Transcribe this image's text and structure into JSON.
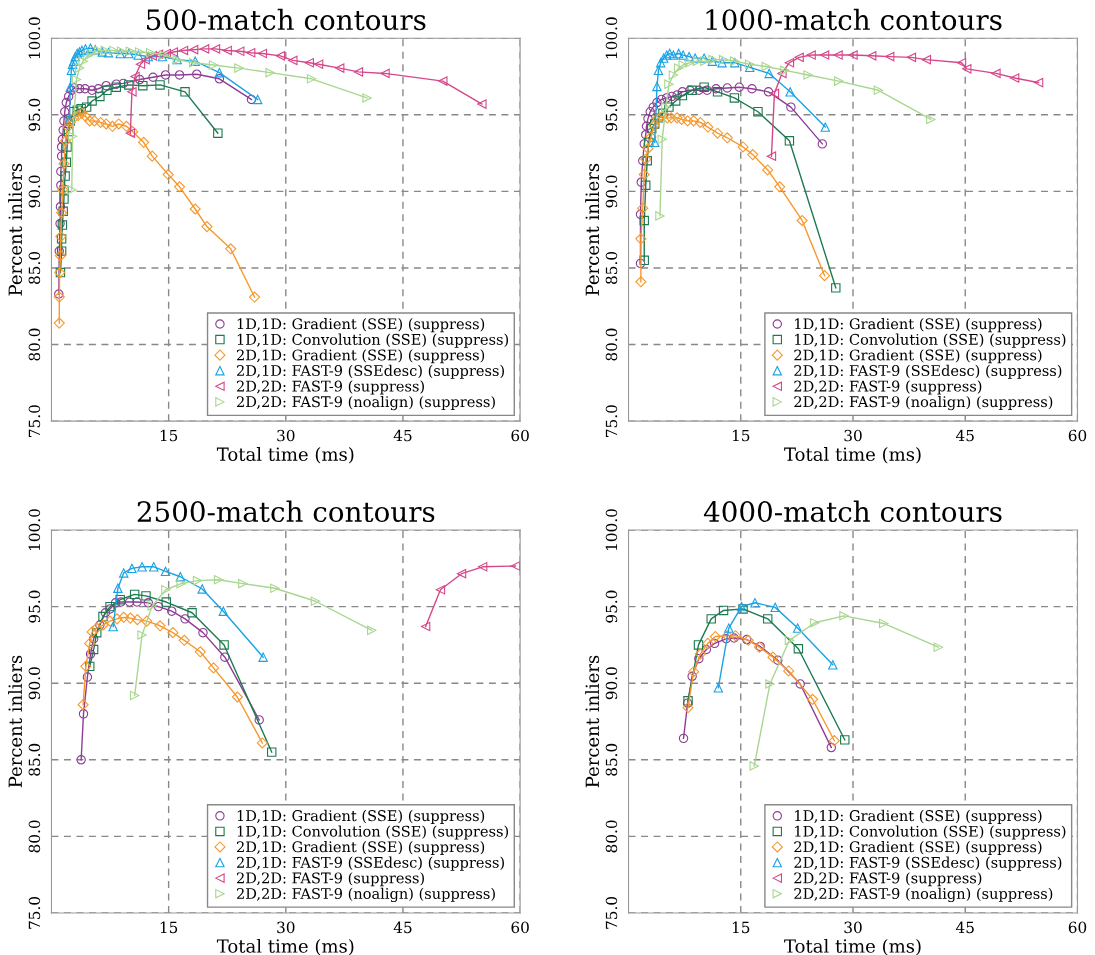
{
  "chart_data": [
    {
      "type": "line",
      "title": "500-match contours",
      "xlabel": "Total time (ms)",
      "ylabel": "Percent inliers",
      "xlim": [
        0,
        60
      ],
      "ylim": [
        75,
        100
      ],
      "xticks": [
        15,
        30,
        45,
        60
      ],
      "yticks": [
        {
          "value": 75,
          "label": "75.0"
        },
        {
          "value": 80,
          "label": "80.0"
        },
        {
          "value": 85,
          "label": "85.0"
        },
        {
          "value": 90,
          "label": "90.0"
        },
        {
          "value": 95,
          "label": "95.0"
        },
        {
          "value": 100,
          "label": "100.0"
        }
      ],
      "grid": true,
      "legend": "bottom right",
      "series": [
        {
          "name": "1D,1D: Gradient (SSE) (suppress)",
          "color": "#8e3d96",
          "marker": "circle",
          "x": [
            0.94,
            1.0,
            1.1,
            1.15,
            1.2,
            1.2,
            1.3,
            1.3,
            1.4,
            1.5,
            1.6,
            1.7,
            1.9,
            2.2,
            2.6,
            2.9,
            3.6,
            4.3,
            5.2,
            6.0,
            7.0,
            8.3,
            9.2,
            11.3,
            13.0,
            14.6,
            16.4,
            18.6,
            21.5,
            25.6
          ],
          "values": [
            83.3,
            86.1,
            87.9,
            89.0,
            90.4,
            91.3,
            92.3,
            92.9,
            93.4,
            94.0,
            94.6,
            95.2,
            95.8,
            96.2,
            96.6,
            96.75,
            96.7,
            96.7,
            96.6,
            96.7,
            96.9,
            97.0,
            97.05,
            97.3,
            97.45,
            97.6,
            97.6,
            97.65,
            97.35,
            96.0
          ]
        },
        {
          "name": "1D,1D: Convolution (SSE) (suppress)",
          "color": "#1b7a4f",
          "marker": "square",
          "x": [
            1.15,
            1.3,
            1.3,
            1.4,
            1.5,
            1.6,
            1.6,
            1.75,
            1.9,
            2.0,
            2.2,
            2.4,
            2.85,
            3.3,
            3.8,
            4.5,
            5.2,
            6.2,
            7.1,
            8.3,
            9.9,
            11.7,
            13.9,
            17.1,
            21.3
          ],
          "values": [
            84.7,
            86.1,
            86.9,
            87.8,
            88.7,
            89.5,
            90.1,
            91.0,
            91.9,
            92.9,
            93.9,
            94.6,
            95.2,
            95.3,
            95.4,
            95.5,
            95.9,
            96.2,
            96.6,
            96.8,
            96.95,
            96.9,
            96.95,
            96.5,
            93.8
          ]
        },
        {
          "name": "2D,1D: Gradient (SSE) (suppress)",
          "color": "#f7982c",
          "marker": "diamond",
          "x": [
            1.0,
            1.0,
            1.05,
            1.15,
            1.2,
            1.3,
            1.45,
            1.6,
            1.8,
            2.1,
            2.4,
            2.85,
            3.4,
            3.9,
            4.35,
            4.9,
            5.5,
            6.3,
            7.0,
            7.8,
            8.6,
            9.6,
            10.4,
            11.8,
            12.9,
            14.95,
            16.4,
            18.4,
            19.9,
            22.95,
            26.0
          ],
          "values": [
            81.4,
            83.1,
            84.7,
            85.8,
            87.05,
            88.6,
            90.1,
            91.8,
            93.3,
            94.2,
            94.5,
            94.8,
            94.95,
            95.1,
            94.9,
            94.6,
            94.6,
            94.5,
            94.4,
            94.25,
            94.4,
            94.25,
            93.9,
            93.2,
            92.3,
            91.1,
            90.3,
            88.85,
            87.7,
            86.25,
            83.1
          ]
        },
        {
          "name": "2D,1D: FAST-9 (SSEdesc) (suppress)",
          "color": "#1aa2e6",
          "marker": "triangle",
          "x": [
            2.3,
            2.4,
            2.55,
            2.7,
            2.85,
            3.05,
            3.3,
            3.6,
            3.9,
            4.35,
            5.0,
            5.6,
            6.5,
            7.3,
            8.8,
            9.9,
            11.1,
            12.4,
            14.2,
            16.1,
            18.4,
            21.5,
            26.4
          ],
          "values": [
            94.7,
            96.8,
            97.9,
            98.3,
            98.5,
            98.8,
            99.0,
            99.1,
            99.2,
            99.3,
            99.35,
            99.25,
            99.1,
            99.05,
            99.0,
            99.0,
            98.9,
            98.8,
            98.8,
            98.6,
            98.5,
            97.75,
            96.0
          ]
        },
        {
          "name": "2D,2D: FAST-9 (suppress)",
          "color": "#d6478a",
          "marker": "triangle-left",
          "x": [
            10.1,
            10.3,
            10.7,
            11.4,
            12.0,
            12.9,
            13.7,
            14.7,
            15.6,
            16.9,
            18.2,
            19.6,
            21.0,
            22.5,
            24.1,
            25.5,
            27.0,
            29.3,
            30.9,
            33.0,
            34.2,
            36.9,
            39.3,
            42.7,
            50.1,
            55.1
          ],
          "values": [
            93.8,
            96.5,
            97.5,
            98.3,
            98.6,
            98.85,
            98.95,
            99.0,
            99.1,
            99.2,
            99.25,
            99.3,
            99.3,
            99.2,
            99.15,
            99.05,
            99.0,
            98.85,
            98.55,
            98.4,
            98.3,
            98.05,
            97.8,
            97.7,
            97.2,
            95.7
          ]
        },
        {
          "name": "2D,2D: FAST-9 (noalign) (suppress)",
          "color": "#a8d68f",
          "marker": "triangle-right",
          "x": [
            2.6,
            2.7,
            3.2,
            3.6,
            4.05,
            4.6,
            5.2,
            6.05,
            6.9,
            8.0,
            9.0,
            10.1,
            11.3,
            12.7,
            14.4,
            16.1,
            18.2,
            20.75,
            24.0,
            28.0,
            33.3,
            40.4
          ],
          "values": [
            90.1,
            93.6,
            97.3,
            98.05,
            98.5,
            98.85,
            99.0,
            99.2,
            99.2,
            99.2,
            99.15,
            99.15,
            99.1,
            99.05,
            98.9,
            98.6,
            98.4,
            98.25,
            98.05,
            97.75,
            97.35,
            96.1
          ]
        }
      ]
    },
    {
      "type": "line",
      "title": "1000-match contours",
      "xlabel": "Total time (ms)",
      "ylabel": "Percent inliers",
      "xlim": [
        0,
        60
      ],
      "ylim": [
        75,
        100
      ],
      "xticks": [
        15,
        30,
        45,
        60
      ],
      "yticks": [
        {
          "value": 75,
          "label": "75.0"
        },
        {
          "value": 80,
          "label": "80.0"
        },
        {
          "value": 85,
          "label": "85.0"
        },
        {
          "value": 90,
          "label": "90.0"
        },
        {
          "value": 95,
          "label": "95.0"
        },
        {
          "value": 100,
          "label": "100.0"
        }
      ],
      "grid": true,
      "legend": "bottom right",
      "series": [
        {
          "name": "1D,1D: Gradient (SSE) (suppress)",
          "color": "#8e3d96",
          "marker": "circle",
          "x": [
            1.6,
            1.6,
            1.7,
            1.9,
            2.1,
            2.3,
            2.4,
            2.6,
            2.9,
            3.3,
            3.8,
            4.4,
            5.1,
            5.8,
            6.5,
            7.2,
            8.2,
            9.4,
            10.5,
            11.7,
            13.2,
            14.8,
            16.5,
            18.7,
            21.7,
            25.9
          ],
          "values": [
            85.3,
            88.5,
            90.6,
            92.0,
            93.1,
            93.7,
            94.25,
            94.75,
            95.2,
            95.5,
            95.8,
            96.0,
            96.1,
            96.2,
            96.3,
            96.5,
            96.6,
            96.6,
            96.6,
            96.7,
            96.75,
            96.8,
            96.7,
            96.5,
            95.5,
            93.1
          ]
        },
        {
          "name": "1D,1D: Convolution (SSE) (suppress)",
          "color": "#1b7a4f",
          "marker": "square",
          "x": [
            2.1,
            2.1,
            2.3,
            2.5,
            2.7,
            3.1,
            3.5,
            4.0,
            4.6,
            5.4,
            6.3,
            7.2,
            8.5,
            10.1,
            11.9,
            14.15,
            17.3,
            21.5,
            27.7
          ],
          "values": [
            85.5,
            88.1,
            90.4,
            92.0,
            93.2,
            94.1,
            94.4,
            94.8,
            95.1,
            95.5,
            95.9,
            96.25,
            96.6,
            96.8,
            96.5,
            96.1,
            95.2,
            93.3,
            83.7
          ]
        },
        {
          "name": "2D,1D: Gradient (SSE) (suppress)",
          "color": "#f7982c",
          "marker": "diamond",
          "x": [
            1.65,
            1.65,
            1.9,
            2.1,
            2.3,
            2.6,
            3.0,
            3.4,
            3.9,
            4.5,
            5.2,
            5.7,
            6.5,
            7.1,
            7.9,
            8.7,
            9.6,
            10.6,
            11.9,
            13.2,
            15.3,
            16.6,
            18.6,
            20.2,
            23.2,
            26.2
          ],
          "values": [
            84.1,
            86.9,
            88.9,
            91.1,
            92.1,
            92.8,
            93.55,
            94.3,
            94.75,
            94.9,
            94.8,
            94.8,
            94.8,
            94.7,
            94.6,
            94.6,
            94.5,
            94.2,
            93.8,
            93.5,
            92.9,
            92.4,
            91.4,
            90.3,
            88.1,
            84.5
          ]
        },
        {
          "name": "2D,1D: FAST-9 (SSEdesc) (suppress)",
          "color": "#1aa2e6",
          "marker": "triangle",
          "x": [
            3.5,
            3.8,
            4.0,
            4.3,
            4.7,
            5.1,
            5.5,
            6.0,
            6.7,
            7.3,
            8.1,
            8.9,
            10.1,
            11.2,
            12.5,
            14.2,
            16.2,
            18.8,
            21.6,
            26.3
          ],
          "values": [
            93.2,
            96.85,
            97.9,
            98.4,
            98.7,
            98.9,
            99.0,
            98.9,
            99.0,
            98.9,
            98.8,
            98.7,
            98.7,
            98.5,
            98.4,
            98.4,
            98.1,
            97.7,
            96.5,
            94.2
          ]
        },
        {
          "name": "2D,2D: FAST-9 (suppress)",
          "color": "#d6478a",
          "marker": "triangle-left",
          "x": [
            19.1,
            19.5,
            20.5,
            21.5,
            22.8,
            24.4,
            26.2,
            28.0,
            30.0,
            32.5,
            34.9,
            37.8,
            39.8,
            44.5,
            45.2,
            49.1,
            51.6,
            54.8
          ],
          "values": [
            92.3,
            96.4,
            97.7,
            98.4,
            98.75,
            98.9,
            98.9,
            98.9,
            98.9,
            98.85,
            98.8,
            98.75,
            98.6,
            98.4,
            98.0,
            97.7,
            97.4,
            97.1
          ]
        },
        {
          "name": "2D,2D: FAST-9 (noalign) (suppress)",
          "color": "#a8d68f",
          "marker": "triangle-right",
          "x": [
            4.2,
            4.5,
            5.0,
            5.4,
            6.0,
            6.7,
            7.3,
            8.2,
            9.2,
            10.2,
            11.3,
            12.7,
            14.2,
            16.2,
            18.4,
            20.9,
            24.0,
            28.1,
            33.4,
            40.4
          ],
          "values": [
            88.4,
            93.4,
            95.5,
            97.0,
            97.6,
            98.05,
            98.25,
            98.4,
            98.5,
            98.5,
            98.6,
            98.6,
            98.5,
            98.3,
            98.15,
            97.9,
            97.6,
            97.2,
            96.6,
            94.7
          ]
        }
      ]
    },
    {
      "type": "line",
      "title": "2500-match contours",
      "xlabel": "Total time (ms)",
      "ylabel": "Percent inliers",
      "xlim": [
        0,
        60
      ],
      "ylim": [
        75,
        100
      ],
      "xticks": [
        15,
        30,
        45,
        60
      ],
      "yticks": [
        {
          "value": 75,
          "label": "75.0"
        },
        {
          "value": 80,
          "label": "80.0"
        },
        {
          "value": 85,
          "label": "85.0"
        },
        {
          "value": 90,
          "label": "90.0"
        },
        {
          "value": 95,
          "label": "95.0"
        },
        {
          "value": 100,
          "label": "100.0"
        }
      ],
      "grid": true,
      "legend": "bottom right",
      "series": [
        {
          "name": "1D,1D: Gradient (SSE) (suppress)",
          "color": "#8e3d96",
          "marker": "circle",
          "x": [
            3.8,
            4.1,
            4.6,
            5.0,
            5.4,
            6.2,
            6.9,
            7.5,
            8.2,
            8.9,
            10.0,
            10.95,
            12.4,
            13.7,
            15.4,
            17.1,
            19.4,
            22.2,
            26.6
          ],
          "values": [
            85.0,
            88.0,
            90.4,
            91.9,
            92.9,
            93.8,
            94.6,
            94.85,
            95.25,
            95.3,
            95.3,
            95.3,
            95.25,
            95.0,
            94.7,
            94.2,
            93.3,
            91.7,
            87.6
          ]
        },
        {
          "name": "1D,1D: Convolution (SSE) (suppress)",
          "color": "#1b7a4f",
          "marker": "square",
          "x": [
            4.9,
            5.4,
            5.8,
            6.6,
            7.5,
            8.8,
            10.65,
            12.1,
            14.7,
            18.0,
            22.1,
            28.2
          ],
          "values": [
            91.1,
            92.2,
            93.3,
            94.35,
            95.0,
            95.45,
            95.8,
            95.7,
            95.3,
            94.6,
            92.5,
            85.5
          ]
        },
        {
          "name": "2D,1D: Gradient (SSE) (suppress)",
          "color": "#f7982c",
          "marker": "diamond",
          "x": [
            4.05,
            4.4,
            4.9,
            5.2,
            5.8,
            6.6,
            7.5,
            8.4,
            9.25,
            10.1,
            11.0,
            12.2,
            13.9,
            15.55,
            17.0,
            19.05,
            20.75,
            23.8,
            27.0
          ],
          "values": [
            88.6,
            91.1,
            92.6,
            93.35,
            93.6,
            93.8,
            94.05,
            94.2,
            94.3,
            94.25,
            94.15,
            94.05,
            93.75,
            93.3,
            92.8,
            92.05,
            91.0,
            89.1,
            86.1
          ]
        },
        {
          "name": "2D,1D: FAST-9 (SSEdesc) (suppress)",
          "color": "#1aa2e6",
          "marker": "triangle",
          "x": [
            7.9,
            8.5,
            9.25,
            10.3,
            11.6,
            13.1,
            14.6,
            16.5,
            19.3,
            22.0,
            27.1
          ],
          "values": [
            93.7,
            96.2,
            97.2,
            97.5,
            97.6,
            97.6,
            97.3,
            96.95,
            96.15,
            94.7,
            91.7
          ]
        },
        {
          "name": "2D,2D: FAST-9 (suppress)",
          "color": "#d6478a",
          "marker": "triangle-left",
          "x": [
            47.9,
            49.8,
            52.5,
            55.2,
            59.4
          ],
          "values": [
            93.7,
            96.1,
            97.15,
            97.6,
            97.65
          ]
        },
        {
          "name": "2D,2D: FAST-9 (noalign) (suppress)",
          "color": "#a8d68f",
          "marker": "triangle-right",
          "x": [
            10.65,
            11.6,
            12.9,
            14.65,
            16.6,
            18.7,
            21.4,
            24.5,
            28.6,
            33.8,
            41.0
          ],
          "values": [
            89.2,
            93.15,
            95.05,
            96.1,
            96.5,
            96.7,
            96.75,
            96.5,
            96.2,
            95.35,
            93.45
          ]
        }
      ]
    },
    {
      "type": "line",
      "title": "4000-match contours",
      "xlabel": "Total time (ms)",
      "ylabel": "Percent inliers",
      "xlim": [
        0,
        60
      ],
      "ylim": [
        75,
        100
      ],
      "xticks": [
        15,
        30,
        45,
        60
      ],
      "yticks": [
        {
          "value": 75,
          "label": "75.0"
        },
        {
          "value": 80,
          "label": "80.0"
        },
        {
          "value": 85,
          "label": "85.0"
        },
        {
          "value": 90,
          "label": "90.0"
        },
        {
          "value": 95,
          "label": "95.0"
        },
        {
          "value": 100,
          "label": "100.0"
        }
      ],
      "grid": true,
      "legend": "bottom right",
      "series": [
        {
          "name": "1D,1D: Gradient (SSE) (suppress)",
          "color": "#8e3d96",
          "marker": "circle",
          "x": [
            7.35,
            7.9,
            8.5,
            9.4,
            10.4,
            11.5,
            13.05,
            14.1,
            15.8,
            17.6,
            19.95,
            22.95,
            27.1
          ],
          "values": [
            86.4,
            88.7,
            90.45,
            91.6,
            92.2,
            92.6,
            92.9,
            92.95,
            92.85,
            92.4,
            91.5,
            89.95,
            85.8
          ]
        },
        {
          "name": "1D,1D: Convolution (SSE) (suppress)",
          "color": "#1b7a4f",
          "marker": "square",
          "x": [
            7.95,
            9.35,
            11.05,
            12.7,
            15.3,
            18.6,
            22.7,
            28.9
          ],
          "values": [
            88.85,
            92.5,
            94.2,
            94.75,
            94.85,
            94.2,
            92.25,
            86.3
          ]
        },
        {
          "name": "2D,1D: Gradient (SSE) (suppress)",
          "color": "#f7982c",
          "marker": "diamond",
          "x": [
            7.95,
            8.7,
            9.6,
            10.6,
            11.6,
            13.2,
            14.3,
            16.0,
            17.5,
            19.3,
            21.4,
            24.6,
            27.5
          ],
          "values": [
            88.4,
            90.75,
            91.9,
            92.6,
            93.05,
            93.1,
            93.1,
            92.8,
            92.35,
            91.7,
            90.8,
            88.95,
            86.25
          ]
        },
        {
          "name": "2D,1D: FAST-9 (SSEdesc) (suppress)",
          "color": "#1aa2e6",
          "marker": "triangle",
          "x": [
            12.0,
            13.4,
            15.1,
            16.9,
            19.6,
            22.6,
            27.3
          ],
          "values": [
            89.7,
            93.6,
            95.0,
            95.25,
            94.95,
            93.6,
            91.2
          ]
        },
        {
          "name": "2D,2D: FAST-9 (suppress)",
          "color": "#d6478a",
          "marker": "triangle-left"
        },
        {
          "name": "2D,2D: FAST-9 (noalign) (suppress)",
          "color": "#a8d68f",
          "marker": "triangle-right",
          "x": [
            16.8,
            18.9,
            21.5,
            24.9,
            28.8,
            34.1,
            41.4
          ],
          "values": [
            84.6,
            89.95,
            92.8,
            93.95,
            94.4,
            93.9,
            92.35
          ]
        }
      ]
    }
  ]
}
